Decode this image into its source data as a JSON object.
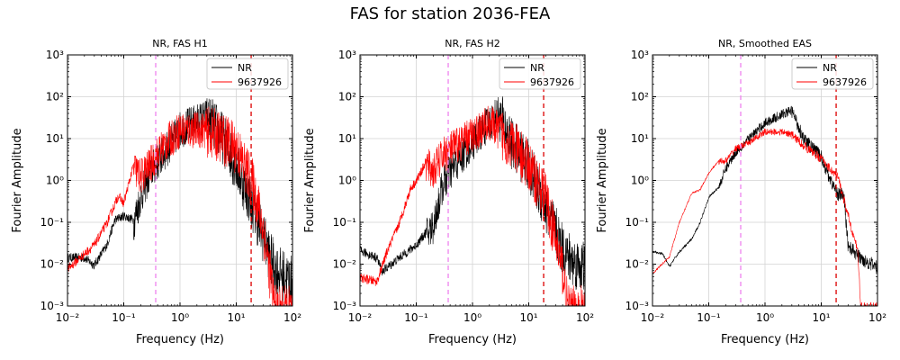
{
  "chart_data": {
    "type": "line",
    "title": "FAS for station 2036-FEA",
    "colors": {
      "NR": "#000000",
      "9637926": "#ff0000",
      "fmin_line": "#ee82ee",
      "fmax_line": "#dd0000",
      "grid": "#d3d3d3"
    },
    "x_scale": "log",
    "y_scale": "log",
    "xlim": [
      0.01,
      100
    ],
    "ylim": [
      0.001,
      1000
    ],
    "xticks": [
      {
        "v": 0.01,
        "label": "10⁻²"
      },
      {
        "v": 0.1,
        "label": "10⁻¹"
      },
      {
        "v": 1,
        "label": "10⁰"
      },
      {
        "v": 10,
        "label": "10¹"
      },
      {
        "v": 100,
        "label": "10²"
      }
    ],
    "yticks": [
      {
        "v": 0.001,
        "label": "10⁻³"
      },
      {
        "v": 0.01,
        "label": "10⁻²"
      },
      {
        "v": 0.1,
        "label": "10⁻¹"
      },
      {
        "v": 1,
        "label": "10⁰"
      },
      {
        "v": 10,
        "label": "10¹"
      },
      {
        "v": 100,
        "label": "10²"
      },
      {
        "v": 1000,
        "label": "10³"
      }
    ],
    "grid": true,
    "legend_placement": "top-right",
    "panels": [
      {
        "title": "NR, FAS H1",
        "xlabel": "Frequency (Hz)",
        "ylabel": "Fourier Amplitude",
        "vlines": [
          0.37,
          18.4
        ],
        "series": [
          {
            "name": "NR",
            "noise": 0.45,
            "points": [
              [
                0.01,
                0.015
              ],
              [
                0.02,
                0.015
              ],
              [
                0.03,
                0.01
              ],
              [
                0.05,
                0.03
              ],
              [
                0.07,
                0.12
              ],
              [
                0.1,
                0.15
              ],
              [
                0.15,
                0.12
              ],
              [
                0.2,
                0.5
              ],
              [
                0.3,
                2
              ],
              [
                0.5,
                5
              ],
              [
                1,
                20
              ],
              [
                3,
                40
              ],
              [
                5,
                20
              ],
              [
                10,
                3
              ],
              [
                20,
                0.3
              ],
              [
                40,
                0.02
              ],
              [
                50,
                0.01
              ],
              [
                100,
                0.005
              ]
            ]
          },
          {
            "name": "9637926",
            "noise": 0.45,
            "points": [
              [
                0.01,
                0.008
              ],
              [
                0.03,
                0.03
              ],
              [
                0.05,
                0.1
              ],
              [
                0.08,
                0.45
              ],
              [
                0.1,
                0.3
              ],
              [
                0.15,
                2.5
              ],
              [
                0.2,
                1.5
              ],
              [
                0.3,
                3
              ],
              [
                0.5,
                8
              ],
              [
                1,
                20
              ],
              [
                3,
                20
              ],
              [
                5,
                15
              ],
              [
                10,
                8
              ],
              [
                20,
                1
              ],
              [
                30,
                0.1
              ],
              [
                50,
                0.001
              ]
            ]
          }
        ]
      },
      {
        "title": "NR, FAS H2",
        "xlabel": "Frequency (Hz)",
        "ylabel": "Fourier Amplitude",
        "vlines": [
          0.37,
          18.4
        ],
        "series": [
          {
            "name": "NR",
            "noise": 0.45,
            "points": [
              [
                0.01,
                0.022
              ],
              [
                0.02,
                0.015
              ],
              [
                0.025,
                0.007
              ],
              [
                0.05,
                0.015
              ],
              [
                0.1,
                0.03
              ],
              [
                0.2,
                0.1
              ],
              [
                0.3,
                1
              ],
              [
                0.5,
                3
              ],
              [
                1,
                10
              ],
              [
                2,
                30
              ],
              [
                3,
                50
              ],
              [
                5,
                10
              ],
              [
                10,
                3
              ],
              [
                20,
                0.3
              ],
              [
                40,
                0.03
              ],
              [
                60,
                0.015
              ],
              [
                100,
                0.011
              ]
            ]
          },
          {
            "name": "9637926",
            "noise": 0.45,
            "points": [
              [
                0.01,
                0.005
              ],
              [
                0.02,
                0.004
              ],
              [
                0.03,
                0.02
              ],
              [
                0.05,
                0.1
              ],
              [
                0.08,
                0.7
              ],
              [
                0.1,
                1
              ],
              [
                0.15,
                3
              ],
              [
                0.2,
                2
              ],
              [
                0.3,
                5
              ],
              [
                1,
                15
              ],
              [
                2,
                30
              ],
              [
                5,
                10
              ],
              [
                10,
                3
              ],
              [
                20,
                0.5
              ],
              [
                40,
                0.01
              ],
              [
                50,
                0.001
              ]
            ]
          }
        ]
      },
      {
        "title": "NR, Smoothed EAS",
        "xlabel": "Frequency (Hz)",
        "ylabel": "Fourier Amplitude",
        "vlines": [
          0.37,
          18.4
        ],
        "series": [
          {
            "name": "NR",
            "noise": 0.12,
            "points": [
              [
                0.01,
                0.02
              ],
              [
                0.015,
                0.018
              ],
              [
                0.02,
                0.009
              ],
              [
                0.03,
                0.02
              ],
              [
                0.05,
                0.04
              ],
              [
                0.07,
                0.1
              ],
              [
                0.1,
                0.4
              ],
              [
                0.15,
                0.7
              ],
              [
                0.2,
                2
              ],
              [
                0.3,
                5
              ],
              [
                0.5,
                10
              ],
              [
                1,
                25
              ],
              [
                2,
                40
              ],
              [
                3,
                50
              ],
              [
                5,
                10
              ],
              [
                10,
                4
              ],
              [
                15,
                1
              ],
              [
                20,
                0.5
              ],
              [
                25,
                0.5
              ],
              [
                30,
                0.03
              ],
              [
                50,
                0.015
              ],
              [
                100,
                0.009
              ]
            ]
          },
          {
            "name": "9637926",
            "noise": 0.08,
            "points": [
              [
                0.01,
                0.006
              ],
              [
                0.02,
                0.015
              ],
              [
                0.03,
                0.1
              ],
              [
                0.05,
                0.5
              ],
              [
                0.07,
                0.6
              ],
              [
                0.1,
                1.5
              ],
              [
                0.15,
                3
              ],
              [
                0.2,
                3
              ],
              [
                0.3,
                6
              ],
              [
                0.5,
                8
              ],
              [
                1,
                15
              ],
              [
                2,
                15
              ],
              [
                3,
                13
              ],
              [
                5,
                7
              ],
              [
                10,
                3.5
              ],
              [
                20,
                1.2
              ],
              [
                30,
                0.15
              ],
              [
                45,
                0.02
              ],
              [
                50,
                0.001
              ]
            ]
          }
        ]
      }
    ]
  }
}
